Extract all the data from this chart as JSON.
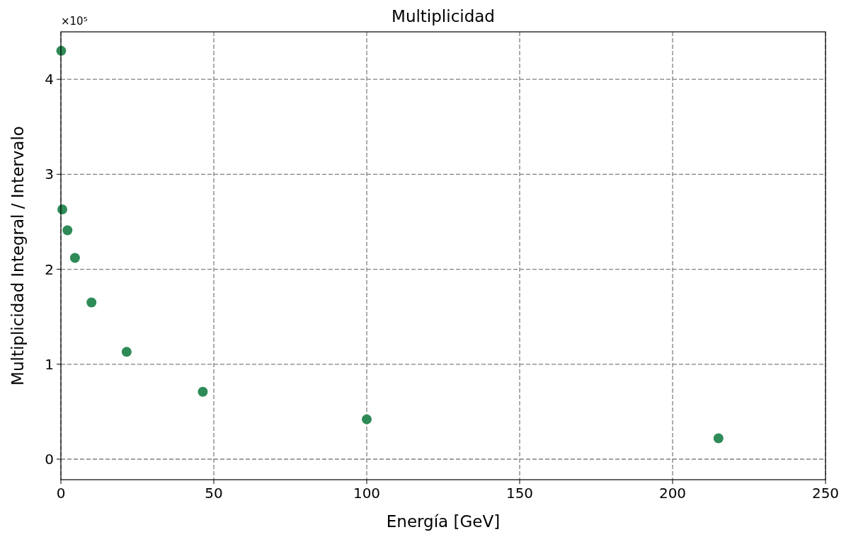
{
  "chart_data": {
    "type": "scatter",
    "title": "Multiplicidad",
    "xlabel": "Energía [GeV]",
    "ylabel": "Multiplicidad Integral / Intervalo",
    "annotations": [
      "×10⁵"
    ],
    "x": [
      0.1,
      0.46,
      2.15,
      4.6,
      10,
      21.5,
      46.4,
      100,
      215
    ],
    "series": [
      {
        "color": "#2e8b57",
        "values": [
          4.3,
          2.63,
          2.41,
          2.12,
          1.65,
          1.13,
          0.71,
          0.42,
          0.22
        ]
      }
    ],
    "xlim": [
      0,
      250
    ],
    "xticks": [
      0,
      50,
      100,
      150,
      200,
      250
    ],
    "ylim": [
      -0.216,
      4.5
    ],
    "yticks": [
      0,
      1,
      2,
      3,
      4
    ],
    "grid": true,
    "marker": "circle"
  }
}
